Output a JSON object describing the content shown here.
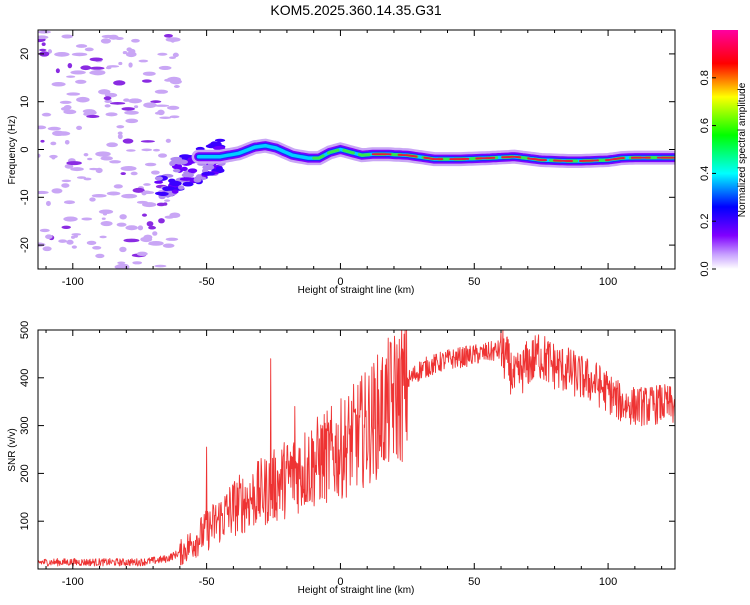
{
  "title": "KOM5.2025.360.14.35.G31",
  "chart_data": [
    {
      "type": "heatmap",
      "name": "spectrogram",
      "xlabel": "Height of straight line (km)",
      "ylabel": "Frequency (Hz)",
      "xlim": [
        -113,
        125
      ],
      "ylim": [
        -25,
        25
      ],
      "xticks": [
        -100,
        -50,
        0,
        50,
        100
      ],
      "yticks": [
        -20,
        -10,
        0,
        10,
        20
      ],
      "colorbar": {
        "label": "Normalized spectral amplitude",
        "range": [
          0,
          1
        ],
        "ticks": [
          "0.0",
          "0.2",
          "0.4",
          "0.6",
          "0.8"
        ],
        "tick_values": [
          0.0,
          0.2,
          0.4,
          0.6,
          0.8
        ],
        "colors": [
          "#ffffff",
          "#c8a2ff",
          "#8000ff",
          "#0000ff",
          "#00ffff",
          "#00ff00",
          "#ffff00",
          "#ff0000",
          "#ff00a0"
        ]
      },
      "ridge": {
        "height_km": [
          -52,
          -45,
          -38,
          -32,
          -28,
          -24,
          -18,
          -12,
          -8,
          -4,
          0,
          4,
          8,
          12,
          18,
          25,
          35,
          45,
          55,
          65,
          75,
          80,
          85,
          90,
          95,
          100,
          105,
          110,
          115,
          120,
          125
        ],
        "frequency_hz": [
          -1.5,
          -1.5,
          -0.8,
          0.5,
          0.8,
          0.3,
          -1.2,
          -1.8,
          -1.8,
          -0.6,
          0.0,
          -0.6,
          -1.2,
          -1.0,
          -1.0,
          -1.2,
          -2.0,
          -2.0,
          -1.8,
          -1.5,
          -2.2,
          -2.3,
          -2.4,
          -2.4,
          -2.3,
          -2.2,
          -1.8,
          -1.7,
          -1.7,
          -1.7,
          -1.7
        ]
      }
    },
    {
      "type": "line",
      "name": "snr",
      "xlabel": "Height of straight line (km)",
      "ylabel": "SNR (v/v)",
      "xlim": [
        -113,
        125
      ],
      "ylim": [
        0,
        500
      ],
      "xticks": [
        -100,
        -50,
        0,
        50,
        100
      ],
      "yticks": [
        100,
        200,
        300,
        400,
        500
      ],
      "color": "#ee3333",
      "envelope": {
        "height_km": [
          -113,
          -75,
          -70,
          -65,
          -60,
          -55,
          -50,
          -45,
          -40,
          -35,
          -30,
          -25,
          -20,
          -15,
          -10,
          -5,
          0,
          5,
          10,
          15,
          20,
          25,
          30,
          35,
          40,
          45,
          50,
          55,
          60,
          62,
          65,
          70,
          75,
          80,
          85,
          90,
          95,
          100,
          105,
          110,
          115,
          120,
          125
        ],
        "snr": [
          15,
          15,
          18,
          22,
          35,
          60,
          85,
          110,
          135,
          150,
          165,
          180,
          200,
          215,
          230,
          245,
          260,
          285,
          310,
          340,
          370,
          395,
          420,
          430,
          440,
          445,
          450,
          455,
          460,
          445,
          400,
          435,
          450,
          430,
          420,
          405,
          395,
          375,
          350,
          345,
          345,
          350,
          345
        ]
      },
      "spikes": [
        {
          "height_km": -50,
          "snr": 255
        },
        {
          "height_km": -26,
          "snr": 440
        },
        {
          "height_km": -17,
          "snr": 340
        },
        {
          "height_km": 60,
          "snr": 500
        },
        {
          "height_km": 74,
          "snr": 490
        }
      ]
    }
  ]
}
